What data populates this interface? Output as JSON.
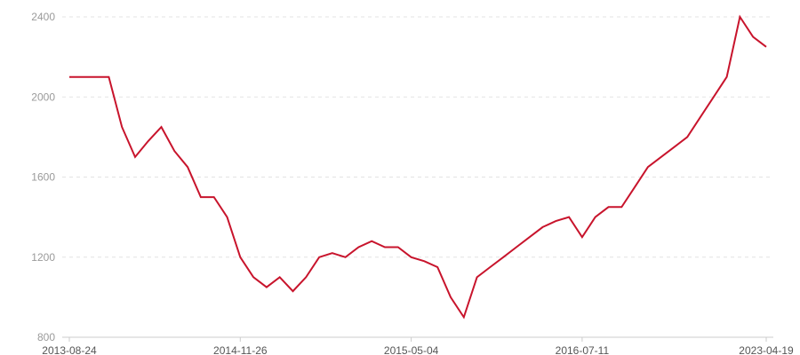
{
  "chart_data": {
    "type": "line",
    "title": "",
    "xlabel": "",
    "ylabel": "",
    "ylim": [
      800,
      2400
    ],
    "y_ticks": [
      800,
      1200,
      1600,
      2000,
      2400
    ],
    "x_tick_labels": [
      {
        "index": 0,
        "label": "2013-08-24"
      },
      {
        "index": 13,
        "label": "2014-11-26"
      },
      {
        "index": 26,
        "label": "2015-05-04"
      },
      {
        "index": 39,
        "label": "2016-07-11"
      },
      {
        "index": 53,
        "label": "2023-04-19"
      }
    ],
    "grid": true,
    "legend": "none",
    "line_color": "#c8142c",
    "series": [
      {
        "values": [
          2100,
          2100,
          2100,
          2100,
          1850,
          1700,
          1780,
          1850,
          1730,
          1650,
          1500,
          1500,
          1400,
          1200,
          1100,
          1050,
          1100,
          1030,
          1100,
          1200,
          1220,
          1200,
          1250,
          1280,
          1250,
          1250,
          1200,
          1180,
          1150,
          1000,
          900,
          1100,
          1150,
          1200,
          1250,
          1300,
          1350,
          1380,
          1400,
          1300,
          1400,
          1450,
          1450,
          1550,
          1650,
          1700,
          1750,
          1800,
          1900,
          2000,
          2100,
          2400,
          2300,
          2250
        ]
      }
    ]
  }
}
